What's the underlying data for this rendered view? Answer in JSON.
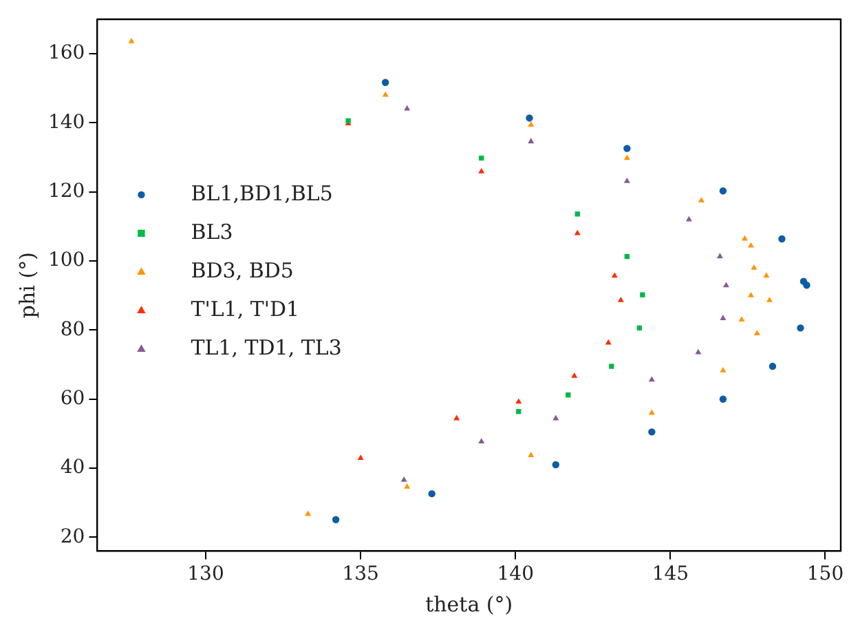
{
  "chart_data": {
    "type": "scatter",
    "xlabel": "theta (°)",
    "ylabel": "phi (°)",
    "xlim": [
      126.5,
      150.5
    ],
    "ylim": [
      16,
      170
    ],
    "xticks": [
      130,
      135,
      140,
      145,
      150
    ],
    "yticks": [
      20,
      40,
      60,
      80,
      100,
      120,
      140,
      160
    ],
    "grid": false,
    "legend": "left",
    "series": [
      {
        "name": "BL1,BD1,BL5",
        "color": "#0c5da5",
        "marker": "circle",
        "x": [
          135.8,
          140.45,
          143.6,
          146.7,
          148.6,
          149.3,
          149.4,
          149.2,
          148.3,
          146.7,
          144.4,
          141.3,
          137.3,
          134.2
        ],
        "values": [
          151.7,
          141.4,
          132.6,
          120.3,
          106.4,
          94.1,
          93,
          80.6,
          69.5,
          60,
          50.5,
          41,
          32.6,
          25.1
        ]
      },
      {
        "name": "BL3",
        "color": "#00b945",
        "marker": "square",
        "x": [
          134.6,
          138.9,
          142,
          143.6,
          144.1,
          144,
          143.1,
          141.7,
          140.1
        ],
        "values": [
          140.6,
          129.8,
          113.6,
          101.3,
          90.2,
          80.6,
          69.5,
          61.2,
          56.4
        ]
      },
      {
        "name": "BD3, BD5",
        "color": "#ff9500",
        "marker": "triangle",
        "x": [
          127.6,
          135.8,
          140.5,
          143.6,
          146,
          147.4,
          148.1,
          148.2,
          147.8,
          146.7,
          144.4,
          140.5,
          136.5,
          133.3,
          147.6,
          147.7,
          147.6,
          147.3
        ],
        "values": [
          163.6,
          148.1,
          139.4,
          129.8,
          117.5,
          106.4,
          95.7,
          88.6,
          79,
          68.3,
          56,
          43.7,
          34.6,
          26.7,
          104.4,
          98,
          90,
          83
        ]
      },
      {
        "name": "T'L1, T'D1",
        "color": "#ff2c00",
        "marker": "triangle",
        "x": [
          134.6,
          138.9,
          142,
          143.2,
          143.4,
          143,
          141.9,
          140.1,
          138.1,
          135
        ],
        "values": [
          139.8,
          125.9,
          108,
          95.7,
          88.6,
          76.3,
          66.7,
          59.2,
          54.4,
          42.9
        ]
      },
      {
        "name": "TL1, TD1, TL3",
        "color": "#845b97",
        "marker": "triangle",
        "x": [
          136.5,
          140.5,
          143.6,
          145.6,
          146.6,
          146.8,
          146.7,
          145.9,
          144.4,
          141.3,
          138.9,
          136.4
        ],
        "values": [
          144.1,
          134.6,
          123.1,
          112,
          101.3,
          92.9,
          83.4,
          73.5,
          65.6,
          54.4,
          47.7,
          36.6
        ]
      }
    ]
  }
}
